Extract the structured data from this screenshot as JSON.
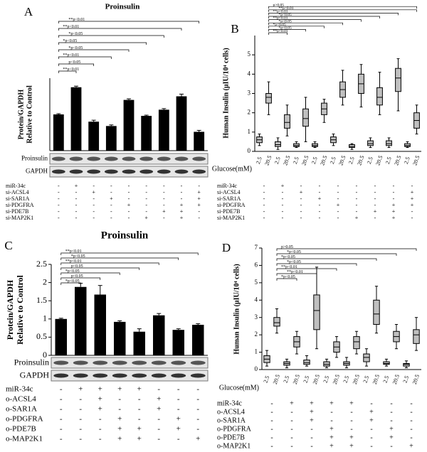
{
  "chart_data": [
    {
      "type": "bar",
      "panel": "A",
      "title": "Proinsulin",
      "ylabel": [
        "Protein/GAPDH",
        "Relative to Control"
      ],
      "values": [
        1.0,
        1.75,
        0.8,
        0.68,
        1.4,
        0.96,
        1.13,
        1.5,
        0.52
      ],
      "errors": [
        0.02,
        0.03,
        0.04,
        0.03,
        0.03,
        0.02,
        0.03,
        0.06,
        0.04
      ],
      "ylim": [
        0,
        2
      ],
      "color": "#000000",
      "blot": [
        "Proinsulin",
        "GAPDH"
      ],
      "conditions": [
        {
          "label": "miR-34c",
          "marks": [
            "-",
            "+",
            "-",
            "-",
            "-",
            "-",
            "-",
            "-",
            "-"
          ]
        },
        {
          "label": "si-ACSL4",
          "marks": [
            "-",
            "-",
            "+",
            "-",
            "-",
            "-",
            "-",
            "-",
            "+"
          ]
        },
        {
          "label": "si-SAR1A",
          "marks": [
            "-",
            "-",
            "-",
            "+",
            "-",
            "-",
            "-",
            "-",
            "+"
          ]
        },
        {
          "label": "si-PDGFRA",
          "marks": [
            "-",
            "-",
            "-",
            "-",
            "+",
            "-",
            "-",
            "+",
            "+"
          ]
        },
        {
          "label": "si-PDE7B",
          "marks": [
            "-",
            "-",
            "-",
            "-",
            "-",
            "-",
            "+",
            "+",
            "-"
          ]
        },
        {
          "label": "si-MAP2K1",
          "marks": [
            "-",
            "-",
            "-",
            "-",
            "-",
            "+",
            "-",
            "+",
            "-"
          ]
        }
      ],
      "annotations": [
        "**p<0.01",
        "p<0.05",
        "**p<0.01",
        "*p<0.05",
        "*p<0.05",
        "*p<0.05",
        "**p<0.01",
        "**p<0.01"
      ]
    },
    {
      "type": "box",
      "panel": "B",
      "ylabel": "Human Insulin  (μIU/10⁴ cells)",
      "xlabel": "Glucose(mM)",
      "categories": [
        "2.5",
        "20.5",
        "2.5",
        "20.5",
        "2.5",
        "20.5",
        "2.5",
        "20.5",
        "2.5",
        "20.5",
        "2.5",
        "20.5",
        "2.5",
        "20.5",
        "2.5",
        "20.5",
        "2.5",
        "20.5"
      ],
      "boxes": [
        {
          "min": 0.3,
          "q1": 0.45,
          "median": 0.6,
          "q3": 0.75,
          "max": 0.9
        },
        {
          "min": 1.9,
          "q1": 2.5,
          "median": 2.8,
          "q3": 3.0,
          "max": 3.6
        },
        {
          "min": 0.1,
          "q1": 0.25,
          "median": 0.35,
          "q3": 0.5,
          "max": 0.7
        },
        {
          "min": 0.8,
          "q1": 1.2,
          "median": 1.5,
          "q3": 1.9,
          "max": 2.4
        },
        {
          "min": 0.2,
          "q1": 0.25,
          "median": 0.3,
          "q3": 0.4,
          "max": 0.5
        },
        {
          "min": 0.5,
          "q1": 1.3,
          "median": 1.7,
          "q3": 2.2,
          "max": 2.8
        },
        {
          "min": 0.2,
          "q1": 0.25,
          "median": 0.3,
          "q3": 0.4,
          "max": 0.5
        },
        {
          "min": 1.5,
          "q1": 1.9,
          "median": 2.2,
          "q3": 2.5,
          "max": 2.7
        },
        {
          "min": 0.3,
          "q1": 0.45,
          "median": 0.6,
          "q3": 0.75,
          "max": 0.9
        },
        {
          "min": 2.4,
          "q1": 2.8,
          "median": 3.2,
          "q3": 3.6,
          "max": 4.2
        },
        {
          "min": 0.1,
          "q1": 0.2,
          "median": 0.25,
          "q3": 0.35,
          "max": 0.4
        },
        {
          "min": 2.3,
          "q1": 3.0,
          "median": 3.5,
          "q3": 4.0,
          "max": 4.5
        },
        {
          "min": 0.2,
          "q1": 0.3,
          "median": 0.4,
          "q3": 0.55,
          "max": 0.7
        },
        {
          "min": 1.9,
          "q1": 2.4,
          "median": 2.8,
          "q3": 3.3,
          "max": 4.1
        },
        {
          "min": 0.2,
          "q1": 0.3,
          "median": 0.4,
          "q3": 0.55,
          "max": 0.7
        },
        {
          "min": 2.1,
          "q1": 3.1,
          "median": 3.8,
          "q3": 4.3,
          "max": 4.8
        },
        {
          "min": 0.2,
          "q1": 0.25,
          "median": 0.3,
          "q3": 0.4,
          "max": 0.5
        },
        {
          "min": 0.9,
          "q1": 1.2,
          "median": 1.6,
          "q3": 2.0,
          "max": 2.4
        }
      ],
      "ylim": [
        0,
        6
      ],
      "yticks": [
        0,
        1,
        2,
        3,
        4,
        5
      ],
      "color": "#c0c0c0",
      "conditions": [
        {
          "label": "miR-34c",
          "marks": [
            "-",
            "+",
            "-",
            "-",
            "-",
            "-",
            "-",
            "-",
            "-"
          ]
        },
        {
          "label": "si-ACSL4",
          "marks": [
            "-",
            "-",
            "+",
            "-",
            "-",
            "-",
            "-",
            "-",
            "+"
          ]
        },
        {
          "label": "si-SAR1A",
          "marks": [
            "-",
            "-",
            "-",
            "+",
            "-",
            "-",
            "-",
            "-",
            "+"
          ]
        },
        {
          "label": "si-PDGFRA",
          "marks": [
            "-",
            "-",
            "-",
            "-",
            "+",
            "-",
            "-",
            "+",
            "+"
          ]
        },
        {
          "label": "si-PDE7B",
          "marks": [
            "-",
            "-",
            "-",
            "-",
            "-",
            "-",
            "+",
            "+",
            "-"
          ]
        },
        {
          "label": "si-MAP2K1",
          "marks": [
            "-",
            "-",
            "-",
            "-",
            "-",
            "+",
            "-",
            "+",
            "-"
          ]
        }
      ],
      "annotations": [
        "**p<0.01",
        "*p<0.05",
        "*p<0.05",
        "*p<0.05",
        "**p<0.01",
        "*p<0.05",
        "**p<0.01",
        "**p<0.01",
        "p>0.05"
      ]
    },
    {
      "type": "bar",
      "panel": "C",
      "title": "Proinsulin",
      "ylabel": [
        "Protein/GAPDH",
        "Relative to Control"
      ],
      "values": [
        1.0,
        1.88,
        1.67,
        0.92,
        0.65,
        1.1,
        0.7,
        0.84
      ],
      "errors": [
        0.02,
        0.1,
        0.25,
        0.03,
        0.08,
        0.05,
        0.03,
        0.03
      ],
      "ylim": [
        0,
        2.5
      ],
      "yticks": [
        0,
        0.5,
        1,
        1.5,
        2,
        2.5
      ],
      "color": "#000000",
      "blot": [
        "Proinsulin",
        "GAPDH"
      ],
      "conditions": [
        {
          "label": "miR-34c",
          "marks": [
            "-",
            "+",
            "+",
            "+",
            "+",
            "-",
            "-",
            "-"
          ]
        },
        {
          "label": "o-ACSL4",
          "marks": [
            "-",
            "-",
            "+",
            "-",
            "-",
            "+",
            "-",
            "-"
          ]
        },
        {
          "label": "o-SAR1A",
          "marks": [
            "-",
            "-",
            "+",
            "-",
            "-",
            "+",
            "-",
            "-"
          ]
        },
        {
          "label": "o-PDGFRA",
          "marks": [
            "-",
            "-",
            "-",
            "+",
            "-",
            "-",
            "+",
            "-"
          ]
        },
        {
          "label": "o-PDE7B",
          "marks": [
            "-",
            "-",
            "-",
            "+",
            "+",
            "-",
            "+",
            "-"
          ]
        },
        {
          "label": "o-MAP2K1",
          "marks": [
            "-",
            "-",
            "-",
            "+",
            "+",
            "-",
            "-",
            "+"
          ]
        }
      ],
      "annotations": [
        "*p<0.05",
        "p<0.05",
        "*p<0.05",
        "p<0.05",
        "**p<0.01",
        "*p<0.05",
        "**p<0.01"
      ]
    },
    {
      "type": "box",
      "panel": "D",
      "ylabel": "Human Insulin  (μIU/10⁴ cells)",
      "xlabel": "Glucose(mM)",
      "categories": [
        "2.5",
        "20.5",
        "2.5",
        "20.5",
        "2.5",
        "20.5",
        "2.5",
        "20.5",
        "2.5",
        "20.5",
        "2.5",
        "20.5",
        "2.5",
        "20.5",
        "2.5",
        "20.5"
      ],
      "boxes": [
        {
          "min": 0.2,
          "q1": 0.4,
          "median": 0.6,
          "q3": 0.8,
          "max": 1.1
        },
        {
          "min": 2.1,
          "q1": 2.5,
          "median": 2.7,
          "q3": 3.0,
          "max": 3.5
        },
        {
          "min": 0.1,
          "q1": 0.25,
          "median": 0.35,
          "q3": 0.45,
          "max": 0.6
        },
        {
          "min": 0.9,
          "q1": 1.3,
          "median": 1.6,
          "q3": 1.9,
          "max": 2.2
        },
        {
          "min": 0.2,
          "q1": 0.3,
          "median": 0.4,
          "q3": 0.55,
          "max": 0.8
        },
        {
          "min": 1.2,
          "q1": 2.3,
          "median": 3.4,
          "q3": 4.3,
          "max": 5.9
        },
        {
          "min": 0.1,
          "q1": 0.2,
          "median": 0.3,
          "q3": 0.45,
          "max": 0.6
        },
        {
          "min": 0.7,
          "q1": 1.0,
          "median": 1.3,
          "q3": 1.6,
          "max": 1.9
        },
        {
          "min": 0.1,
          "q1": 0.25,
          "median": 0.35,
          "q3": 0.45,
          "max": 0.7
        },
        {
          "min": 0.9,
          "q1": 1.2,
          "median": 1.6,
          "q3": 1.9,
          "max": 2.2
        },
        {
          "min": 0.2,
          "q1": 0.45,
          "median": 0.7,
          "q3": 0.9,
          "max": 1.2
        },
        {
          "min": 2.1,
          "q1": 2.6,
          "median": 3.2,
          "q3": 4.0,
          "max": 4.8
        },
        {
          "min": 0.2,
          "q1": 0.3,
          "median": 0.35,
          "q3": 0.45,
          "max": 0.6
        },
        {
          "min": 1.2,
          "q1": 1.6,
          "median": 1.9,
          "q3": 2.2,
          "max": 2.6
        },
        {
          "min": 0.1,
          "q1": 0.2,
          "median": 0.3,
          "q3": 0.35,
          "max": 0.5
        },
        {
          "min": 1.1,
          "q1": 1.5,
          "median": 2.0,
          "q3": 2.3,
          "max": 3.0
        }
      ],
      "ylim": [
        0,
        7
      ],
      "yticks": [
        0,
        1,
        2,
        3,
        4,
        5,
        6,
        7
      ],
      "color": "#c0c0c0",
      "conditions": [
        {
          "label": "miR-34c",
          "marks": [
            "-",
            "+",
            "+",
            "+",
            "+",
            "-",
            "-",
            "-"
          ]
        },
        {
          "label": "o-ACSL4",
          "marks": [
            "-",
            "-",
            "+",
            "-",
            "-",
            "+",
            "-",
            "-"
          ]
        },
        {
          "label": "o-SAR1A",
          "marks": [
            "-",
            "-",
            "+",
            "-",
            "-",
            "+",
            "-",
            "-"
          ]
        },
        {
          "label": "o-PDGFRA",
          "marks": [
            "-",
            "-",
            "-",
            "+",
            "-",
            "-",
            "+",
            "-"
          ]
        },
        {
          "label": "o-PDE7B",
          "marks": [
            "-",
            "-",
            "-",
            "+",
            "+",
            "-",
            "+",
            "-"
          ]
        },
        {
          "label": "o-MAP2K1",
          "marks": [
            "-",
            "-",
            "-",
            "+",
            "+",
            "-",
            "-",
            "+"
          ]
        }
      ],
      "annotations": [
        "*p<0.05",
        "**p<0.01",
        "**p<0.01",
        "*p<0.05",
        "*p<0.05",
        "*p<0.05",
        "p>0.05"
      ]
    }
  ]
}
